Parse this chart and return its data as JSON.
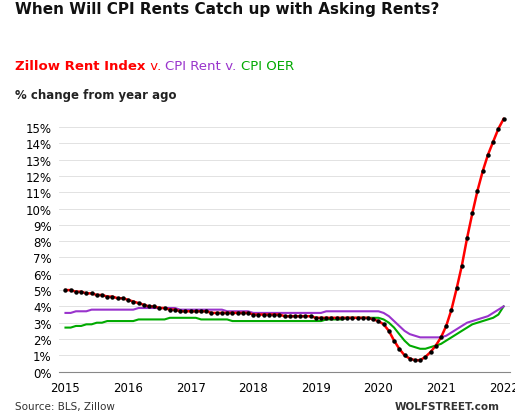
{
  "title": "When Will CPI Rents Catch up with Asking Rents?",
  "ylabel": "% change from year ago",
  "source": "Source: BLS, Zillow",
  "watermark": "WOLFSTREET.com",
  "ylim": [
    0,
    0.16
  ],
  "yticks": [
    0,
    0.01,
    0.02,
    0.03,
    0.04,
    0.05,
    0.06,
    0.07,
    0.08,
    0.09,
    0.1,
    0.11,
    0.12,
    0.13,
    0.14,
    0.15
  ],
  "zillow_color": "#FF0000",
  "cpi_rent_color": "#9933CC",
  "cpi_oer_color": "#00AA00",
  "dot_color": "#000000",
  "background_color": "#FFFFFF",
  "zillow_x": [
    2015.0,
    2015.083,
    2015.167,
    2015.25,
    2015.333,
    2015.417,
    2015.5,
    2015.583,
    2015.667,
    2015.75,
    2015.833,
    2015.917,
    2016.0,
    2016.083,
    2016.167,
    2016.25,
    2016.333,
    2016.417,
    2016.5,
    2016.583,
    2016.667,
    2016.75,
    2016.833,
    2016.917,
    2017.0,
    2017.083,
    2017.167,
    2017.25,
    2017.333,
    2017.417,
    2017.5,
    2017.583,
    2017.667,
    2017.75,
    2017.833,
    2017.917,
    2018.0,
    2018.083,
    2018.167,
    2018.25,
    2018.333,
    2018.417,
    2018.5,
    2018.583,
    2018.667,
    2018.75,
    2018.833,
    2018.917,
    2019.0,
    2019.083,
    2019.167,
    2019.25,
    2019.333,
    2019.417,
    2019.5,
    2019.583,
    2019.667,
    2019.75,
    2019.833,
    2019.917,
    2020.0,
    2020.083,
    2020.167,
    2020.25,
    2020.333,
    2020.417,
    2020.5,
    2020.583,
    2020.667,
    2020.75,
    2020.833,
    2020.917,
    2021.0,
    2021.083,
    2021.167,
    2021.25,
    2021.333,
    2021.417,
    2021.5,
    2021.583,
    2021.667,
    2021.75,
    2021.833,
    2021.917,
    2022.0
  ],
  "zillow_y": [
    0.05,
    0.05,
    0.049,
    0.049,
    0.048,
    0.048,
    0.047,
    0.047,
    0.046,
    0.046,
    0.045,
    0.045,
    0.044,
    0.043,
    0.042,
    0.041,
    0.04,
    0.04,
    0.039,
    0.039,
    0.038,
    0.038,
    0.037,
    0.037,
    0.037,
    0.037,
    0.037,
    0.037,
    0.036,
    0.036,
    0.036,
    0.036,
    0.036,
    0.036,
    0.036,
    0.036,
    0.035,
    0.035,
    0.035,
    0.035,
    0.035,
    0.035,
    0.034,
    0.034,
    0.034,
    0.034,
    0.034,
    0.034,
    0.033,
    0.033,
    0.033,
    0.033,
    0.033,
    0.033,
    0.033,
    0.033,
    0.033,
    0.033,
    0.033,
    0.032,
    0.031,
    0.029,
    0.025,
    0.019,
    0.014,
    0.01,
    0.008,
    0.007,
    0.007,
    0.009,
    0.012,
    0.016,
    0.021,
    0.028,
    0.038,
    0.051,
    0.065,
    0.082,
    0.097,
    0.111,
    0.123,
    0.133,
    0.141,
    0.149,
    0.155
  ],
  "cpi_rent_x": [
    2015.0,
    2015.083,
    2015.167,
    2015.25,
    2015.333,
    2015.417,
    2015.5,
    2015.583,
    2015.667,
    2015.75,
    2015.833,
    2015.917,
    2016.0,
    2016.083,
    2016.167,
    2016.25,
    2016.333,
    2016.417,
    2016.5,
    2016.583,
    2016.667,
    2016.75,
    2016.833,
    2016.917,
    2017.0,
    2017.083,
    2017.167,
    2017.25,
    2017.333,
    2017.417,
    2017.5,
    2017.583,
    2017.667,
    2017.75,
    2017.833,
    2017.917,
    2018.0,
    2018.083,
    2018.167,
    2018.25,
    2018.333,
    2018.417,
    2018.5,
    2018.583,
    2018.667,
    2018.75,
    2018.833,
    2018.917,
    2019.0,
    2019.083,
    2019.167,
    2019.25,
    2019.333,
    2019.417,
    2019.5,
    2019.583,
    2019.667,
    2019.75,
    2019.833,
    2019.917,
    2020.0,
    2020.083,
    2020.167,
    2020.25,
    2020.333,
    2020.417,
    2020.5,
    2020.583,
    2020.667,
    2020.75,
    2020.833,
    2020.917,
    2021.0,
    2021.083,
    2021.167,
    2021.25,
    2021.333,
    2021.417,
    2021.5,
    2021.583,
    2021.667,
    2021.75,
    2021.833,
    2021.917,
    2022.0
  ],
  "cpi_rent_y": [
    0.036,
    0.036,
    0.037,
    0.037,
    0.037,
    0.038,
    0.038,
    0.038,
    0.038,
    0.038,
    0.038,
    0.038,
    0.038,
    0.038,
    0.039,
    0.039,
    0.039,
    0.039,
    0.039,
    0.039,
    0.039,
    0.039,
    0.038,
    0.038,
    0.038,
    0.038,
    0.038,
    0.038,
    0.038,
    0.038,
    0.038,
    0.037,
    0.037,
    0.037,
    0.037,
    0.037,
    0.036,
    0.036,
    0.036,
    0.036,
    0.036,
    0.036,
    0.036,
    0.036,
    0.036,
    0.036,
    0.036,
    0.036,
    0.036,
    0.036,
    0.037,
    0.037,
    0.037,
    0.037,
    0.037,
    0.037,
    0.037,
    0.037,
    0.037,
    0.037,
    0.037,
    0.036,
    0.034,
    0.031,
    0.028,
    0.025,
    0.023,
    0.022,
    0.021,
    0.021,
    0.021,
    0.021,
    0.021,
    0.022,
    0.024,
    0.026,
    0.028,
    0.03,
    0.031,
    0.032,
    0.033,
    0.034,
    0.036,
    0.038,
    0.04
  ],
  "cpi_oer_x": [
    2015.0,
    2015.083,
    2015.167,
    2015.25,
    2015.333,
    2015.417,
    2015.5,
    2015.583,
    2015.667,
    2015.75,
    2015.833,
    2015.917,
    2016.0,
    2016.083,
    2016.167,
    2016.25,
    2016.333,
    2016.417,
    2016.5,
    2016.583,
    2016.667,
    2016.75,
    2016.833,
    2016.917,
    2017.0,
    2017.083,
    2017.167,
    2017.25,
    2017.333,
    2017.417,
    2017.5,
    2017.583,
    2017.667,
    2017.75,
    2017.833,
    2017.917,
    2018.0,
    2018.083,
    2018.167,
    2018.25,
    2018.333,
    2018.417,
    2018.5,
    2018.583,
    2018.667,
    2018.75,
    2018.833,
    2018.917,
    2019.0,
    2019.083,
    2019.167,
    2019.25,
    2019.333,
    2019.417,
    2019.5,
    2019.583,
    2019.667,
    2019.75,
    2019.833,
    2019.917,
    2020.0,
    2020.083,
    2020.167,
    2020.25,
    2020.333,
    2020.417,
    2020.5,
    2020.583,
    2020.667,
    2020.75,
    2020.833,
    2020.917,
    2021.0,
    2021.083,
    2021.167,
    2021.25,
    2021.333,
    2021.417,
    2021.5,
    2021.583,
    2021.667,
    2021.75,
    2021.833,
    2021.917,
    2022.0
  ],
  "cpi_oer_y": [
    0.027,
    0.027,
    0.028,
    0.028,
    0.029,
    0.029,
    0.03,
    0.03,
    0.031,
    0.031,
    0.031,
    0.031,
    0.031,
    0.031,
    0.032,
    0.032,
    0.032,
    0.032,
    0.032,
    0.032,
    0.033,
    0.033,
    0.033,
    0.033,
    0.033,
    0.033,
    0.032,
    0.032,
    0.032,
    0.032,
    0.032,
    0.032,
    0.031,
    0.031,
    0.031,
    0.031,
    0.031,
    0.031,
    0.031,
    0.031,
    0.031,
    0.031,
    0.031,
    0.031,
    0.031,
    0.031,
    0.031,
    0.031,
    0.031,
    0.031,
    0.032,
    0.032,
    0.032,
    0.032,
    0.033,
    0.033,
    0.033,
    0.033,
    0.033,
    0.033,
    0.033,
    0.032,
    0.03,
    0.027,
    0.023,
    0.019,
    0.016,
    0.015,
    0.014,
    0.014,
    0.015,
    0.016,
    0.017,
    0.019,
    0.021,
    0.023,
    0.025,
    0.027,
    0.029,
    0.03,
    0.031,
    0.032,
    0.033,
    0.035,
    0.04
  ],
  "subtitle_parts": [
    {
      "text": "Zillow Rent Index",
      "color": "#FF0000",
      "bold": true
    },
    {
      "text": " v. ",
      "color": "#FF0000",
      "bold": false
    },
    {
      "text": "CPI Rent",
      "color": "#9933CC",
      "bold": false
    },
    {
      "text": " v. ",
      "color": "#9933CC",
      "bold": false
    },
    {
      "text": "CPI OER",
      "color": "#00AA00",
      "bold": false
    }
  ]
}
